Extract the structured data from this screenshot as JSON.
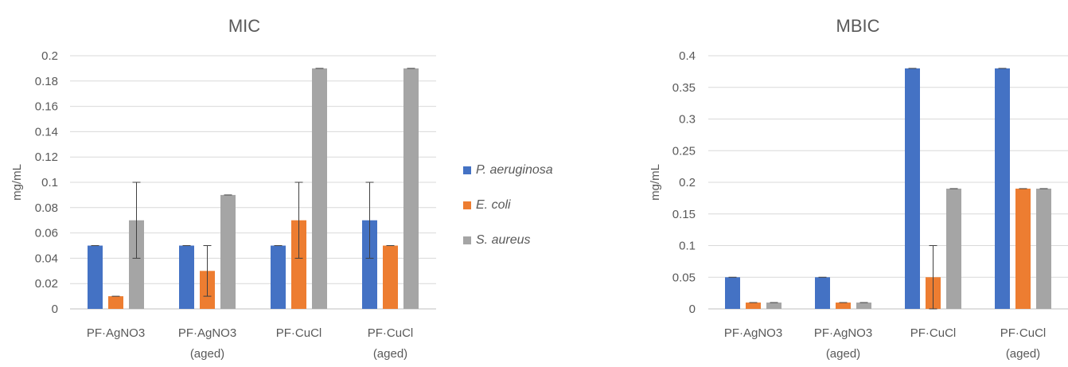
{
  "legend": [
    {
      "name": "P. aeruginosa",
      "color": "#4472C4"
    },
    {
      "name": "E. coli",
      "color": "#ED7D31"
    },
    {
      "name": "S. aureus",
      "color": "#A5A5A5"
    }
  ],
  "chart_data": [
    {
      "type": "bar",
      "title": "MIC",
      "xlabel": "",
      "ylabel": "mg/mL",
      "ylim": [
        0,
        0.2
      ],
      "yticks": [
        "0",
        "0.02",
        "0.04",
        "0.06",
        "0.08",
        "0.1",
        "0.12",
        "0.14",
        "0.16",
        "0.18",
        "0.2"
      ],
      "categories": [
        [
          "PF·AgNO3"
        ],
        [
          "PF·AgNO3",
          "(aged)"
        ],
        [
          "PF·CuCl"
        ],
        [
          "PF·CuCl",
          "(aged)"
        ]
      ],
      "grid": true,
      "legend_position": "right",
      "series": [
        {
          "name": "P. aeruginosa",
          "color": "#4472C4",
          "values": [
            0.05,
            0.05,
            0.05,
            0.07
          ],
          "errors": [
            0,
            0,
            0,
            0.03
          ]
        },
        {
          "name": "E. coli",
          "color": "#ED7D31",
          "values": [
            0.01,
            0.03,
            0.07,
            0.05
          ],
          "errors": [
            0,
            0.02,
            0.03,
            0
          ]
        },
        {
          "name": "S. aureus",
          "color": "#A5A5A5",
          "values": [
            0.07,
            0.09,
            0.19,
            0.19
          ],
          "errors": [
            0.03,
            0,
            0,
            0
          ]
        }
      ]
    },
    {
      "type": "bar",
      "title": "MBIC",
      "xlabel": "",
      "ylabel": "mg/mL",
      "ylim": [
        0,
        0.4
      ],
      "yticks": [
        "0",
        "0.05",
        "0.1",
        "0.15",
        "0.2",
        "0.25",
        "0.3",
        "0.35",
        "0.4"
      ],
      "categories": [
        [
          "PF·AgNO3"
        ],
        [
          "PF·AgNO3",
          "(aged)"
        ],
        [
          "PF·CuCl"
        ],
        [
          "PF·CuCl",
          "(aged)"
        ]
      ],
      "grid": true,
      "legend_position": "right",
      "series": [
        {
          "name": "P. aeruginosa",
          "color": "#4472C4",
          "values": [
            0.05,
            0.05,
            0.38,
            0.38
          ],
          "errors": [
            0,
            0,
            0,
            0
          ]
        },
        {
          "name": "E. coli",
          "color": "#ED7D31",
          "values": [
            0.01,
            0.01,
            0.05,
            0.19
          ],
          "errors": [
            0,
            0,
            0.05,
            0
          ]
        },
        {
          "name": "S. aureus",
          "color": "#A5A5A5",
          "values": [
            0.01,
            0.01,
            0.19,
            0.19
          ],
          "errors": [
            0,
            0,
            0,
            0
          ]
        }
      ]
    }
  ]
}
